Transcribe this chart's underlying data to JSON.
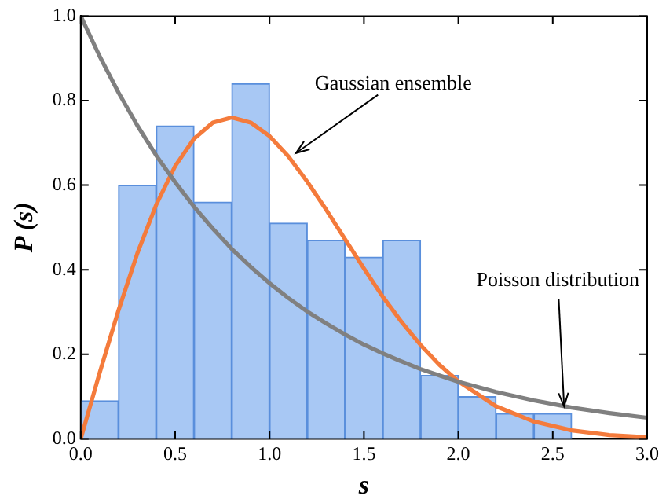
{
  "chart_data": {
    "type": "histogram",
    "xlabel": "s",
    "ylabel": "P (s)",
    "bins": [
      0,
      0.2,
      0.4,
      0.6,
      0.8,
      1.0,
      1.2,
      1.4,
      1.6,
      1.8,
      2.0,
      2.2,
      2.4,
      2.6
    ],
    "values": [
      0.09,
      0.6,
      0.74,
      0.56,
      0.84,
      0.51,
      0.47,
      0.43,
      0.47,
      0.15,
      0.1,
      0.06,
      0.06
    ],
    "color": "#a8c8f4",
    "series": [
      {
        "type": "line",
        "color": "#808080",
        "x": [
          0,
          0.1,
          0.2,
          0.3,
          0.4,
          0.5,
          0.6,
          0.7,
          0.8,
          0.9,
          1.0,
          1.1,
          1.2,
          1.3,
          1.4,
          1.5,
          1.6,
          1.7,
          1.8,
          1.9,
          2.0,
          2.2,
          2.4,
          2.6,
          2.8,
          3.0
        ],
        "values": [
          1,
          0.905,
          0.819,
          0.741,
          0.67,
          0.607,
          0.549,
          0.497,
          0.449,
          0.407,
          0.368,
          0.333,
          0.301,
          0.273,
          0.247,
          0.223,
          0.202,
          0.183,
          0.165,
          0.15,
          0.135,
          0.111,
          0.091,
          0.074,
          0.061,
          0.05
        ]
      },
      {
        "type": "line",
        "color": "#f47b3c",
        "x": [
          0,
          0.1,
          0.2,
          0.3,
          0.4,
          0.5,
          0.6,
          0.7,
          0.8,
          0.9,
          1.0,
          1.1,
          1.2,
          1.3,
          1.4,
          1.5,
          1.6,
          1.7,
          1.8,
          1.9,
          2.0,
          2.2,
          2.4,
          2.6,
          2.8,
          3.0
        ],
        "values": [
          0,
          0.156,
          0.304,
          0.439,
          0.554,
          0.645,
          0.71,
          0.748,
          0.76,
          0.748,
          0.716,
          0.668,
          0.608,
          0.542,
          0.472,
          0.403,
          0.336,
          0.276,
          0.222,
          0.175,
          0.136,
          0.077,
          0.041,
          0.02,
          0.009,
          0.004
        ]
      }
    ],
    "xlim": [
      0,
      3
    ],
    "ylim": [
      0,
      1
    ],
    "xticks": [
      {
        "value": 0,
        "label": "0.0"
      },
      {
        "value": 0.5,
        "label": "0.5"
      },
      {
        "value": 1,
        "label": "1.0"
      },
      {
        "value": 1.5,
        "label": "1.5"
      },
      {
        "value": 2,
        "label": "2.0"
      },
      {
        "value": 2.5,
        "label": "2.5"
      },
      {
        "value": 3,
        "label": "3.0"
      }
    ],
    "yticks": [
      {
        "value": 0,
        "label": "0.0"
      },
      {
        "value": 0.2,
        "label": "0.2"
      },
      {
        "value": 0.4,
        "label": "0.4"
      },
      {
        "value": 0.6,
        "label": "0.6"
      },
      {
        "value": 0.8,
        "label": "0.8"
      },
      {
        "value": 1,
        "label": "1.0"
      }
    ],
    "grid": false,
    "legend": false,
    "marker": "none",
    "line_style": "solid",
    "annotations": [
      {
        "text": "Gaussian ensemble",
        "x": 1.14,
        "y": 0.676
      },
      {
        "text": "Poisson distribution",
        "x": 2.56,
        "y": 0.077
      }
    ]
  }
}
